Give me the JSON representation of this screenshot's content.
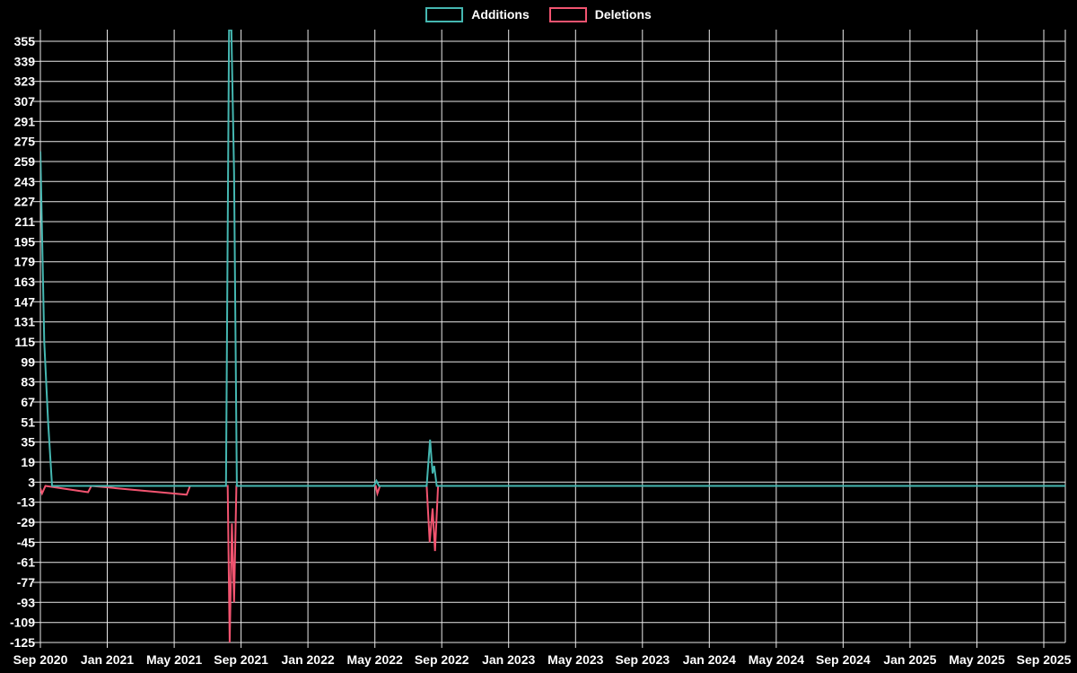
{
  "page": {
    "background_color": "#000000",
    "grid_color": "#e9e9e9",
    "text_color": "#ffffff"
  },
  "chart_data": {
    "type": "line",
    "title": "",
    "xlabel": "",
    "ylabel": "",
    "grid": true,
    "legend_position": "top-center",
    "x_axis_unit": "months from Sep 2020",
    "x_tick_labels": [
      "Sep 2020",
      "Jan 2021",
      "May 2021",
      "Sep 2021",
      "Jan 2022",
      "May 2022",
      "Sep 2022",
      "Jan 2023",
      "May 2023",
      "Sep 2023",
      "Jan 2024",
      "May 2024",
      "Sep 2024",
      "Jan 2025",
      "May 2025",
      "Sep 2025"
    ],
    "y_ticks": [
      355,
      339,
      323,
      307,
      291,
      275,
      259,
      243,
      227,
      211,
      195,
      179,
      163,
      147,
      131,
      115,
      99,
      83,
      67,
      51,
      35,
      19,
      3,
      -13,
      -29,
      -45,
      -61,
      -77,
      -93,
      -109,
      -125
    ],
    "ylim": [
      -125,
      364
    ],
    "xlim_months": [
      0,
      61.3
    ],
    "note": "Additions peak near Sep 2021 is clipped at the top of the plot (exceeds 355); values estimated from gridlines. Points are [months_after_Sep_2020, value].",
    "series": [
      {
        "name": "Additions",
        "color": "#45b7b1",
        "peak_clipped": true,
        "points": [
          [
            0,
            267
          ],
          [
            0.23,
            115
          ],
          [
            0.46,
            51
          ],
          [
            0.7,
            0
          ],
          [
            11.1,
            0
          ],
          [
            11.28,
            364
          ],
          [
            11.42,
            364
          ],
          [
            11.58,
            250
          ],
          [
            11.75,
            0
          ],
          [
            19.95,
            0
          ],
          [
            20.1,
            4
          ],
          [
            20.25,
            0
          ],
          [
            23.1,
            0
          ],
          [
            23.3,
            37
          ],
          [
            23.45,
            10
          ],
          [
            23.55,
            16
          ],
          [
            23.7,
            0
          ],
          [
            61.3,
            0
          ]
        ]
      },
      {
        "name": "Deletions",
        "color": "#f25470",
        "peak_clipped": false,
        "points": [
          [
            0,
            -2
          ],
          [
            0.1,
            -6
          ],
          [
            0.3,
            0
          ],
          [
            2.85,
            -5
          ],
          [
            3.05,
            0
          ],
          [
            8.75,
            -7
          ],
          [
            8.95,
            0
          ],
          [
            11.2,
            0
          ],
          [
            11.32,
            -125
          ],
          [
            11.45,
            -30
          ],
          [
            11.58,
            -93
          ],
          [
            11.72,
            0
          ],
          [
            20.05,
            0
          ],
          [
            20.15,
            -6
          ],
          [
            20.3,
            0
          ],
          [
            23.1,
            0
          ],
          [
            23.28,
            -45
          ],
          [
            23.45,
            -18
          ],
          [
            23.6,
            -52
          ],
          [
            23.78,
            0
          ],
          [
            61.3,
            0
          ]
        ]
      }
    ]
  }
}
